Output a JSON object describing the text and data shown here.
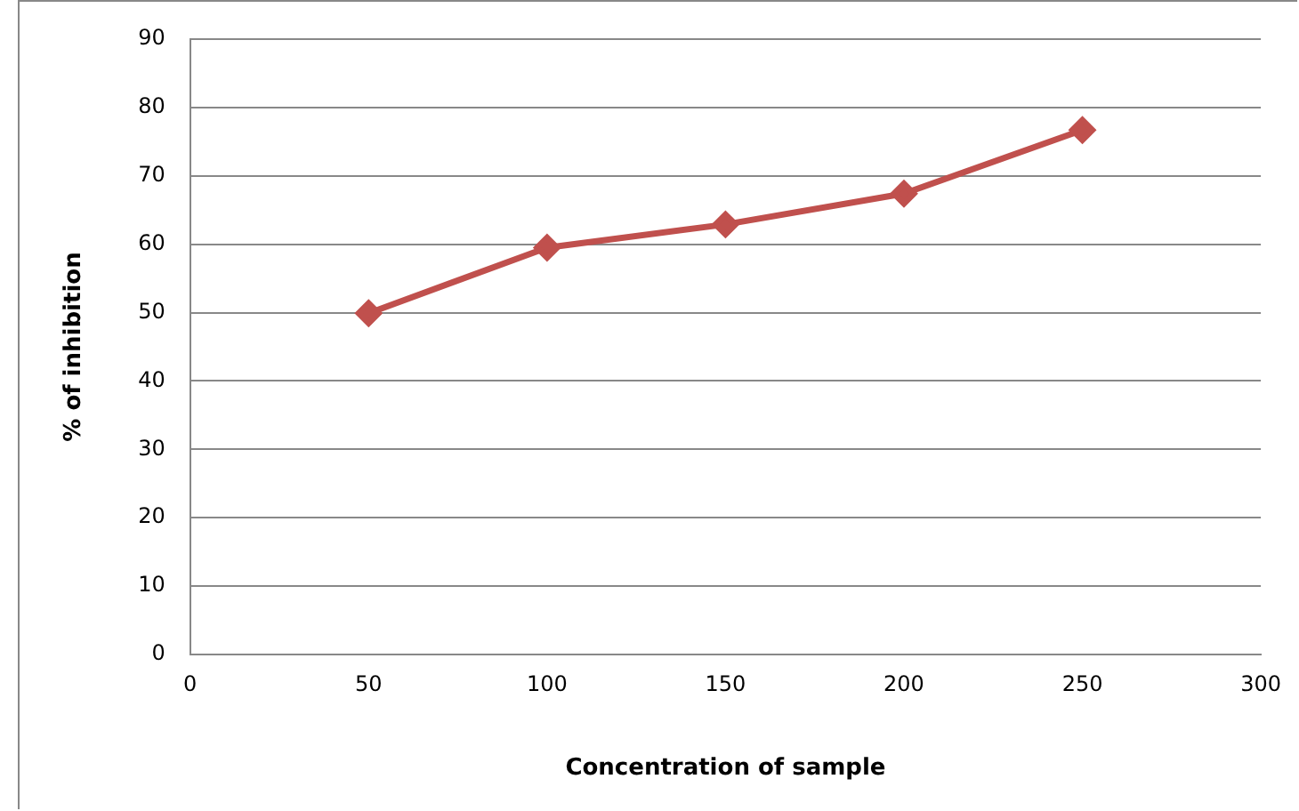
{
  "chart_data": {
    "type": "line",
    "xlabel": "Concentration of sample",
    "ylabel": "% of inhibition",
    "x": [
      50,
      100,
      150,
      200,
      250
    ],
    "series": [
      {
        "color": "#c0504d",
        "values": [
          49.9,
          59.5,
          62.9,
          67.4,
          76.7
        ]
      }
    ],
    "xlim": [
      0,
      300
    ],
    "xticks": [
      0,
      50,
      100,
      150,
      200,
      250,
      300
    ],
    "ylim": [
      0,
      90
    ],
    "yticks": [
      0,
      10,
      20,
      30,
      40,
      50,
      60,
      70,
      80,
      90
    ],
    "grid": "y",
    "legend": false,
    "marker": "diamond",
    "line_style": "solid"
  }
}
